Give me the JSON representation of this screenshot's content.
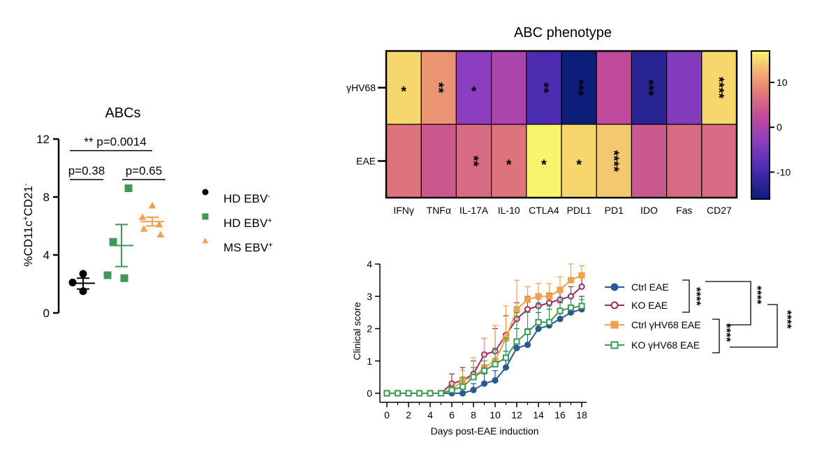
{
  "chart_data": [
    {
      "id": "abcs",
      "type": "scatter",
      "title": "ABCs",
      "ylabel": "%CD11c+CD21-",
      "ylabel_parts": [
        "%CD11c",
        "+",
        "CD21",
        "-"
      ],
      "ylim": [
        0,
        12
      ],
      "yticks": [
        0,
        4,
        8,
        12
      ],
      "ytick_labels": [
        "0",
        "4",
        "8",
        "12"
      ],
      "groups": [
        {
          "name": "HD EBV-",
          "base": "HD EBV",
          "sup": "-",
          "color": "#000000",
          "marker": "circle",
          "values": [
            2.7,
            2.1,
            1.5
          ],
          "mean": 2.05,
          "sem_low": 1.65,
          "sem_high": 2.4
        },
        {
          "name": "HD EBV+",
          "base": "HD EBV",
          "sup": "+",
          "color": "#3e9a57",
          "marker": "square",
          "values": [
            8.6,
            4.9,
            2.6,
            2.4
          ],
          "mean": 4.65,
          "sem_low": 3.2,
          "sem_high": 6.1
        },
        {
          "name": "MS EBV+",
          "base": "MS EBV",
          "sup": "+",
          "color": "#f0a24a",
          "marker": "triangle",
          "values": [
            7.4,
            6.6,
            6.1,
            5.8,
            5.4
          ],
          "mean": 6.3,
          "sem_low": 6.0,
          "sem_high": 6.6
        }
      ],
      "comparisons": [
        {
          "label": "p=0.38",
          "from": 0,
          "to": 1,
          "y": 9.2
        },
        {
          "label": "p=0.65",
          "from": 1,
          "to": 2,
          "y": 9.2
        },
        {
          "label": "** p=0.0014",
          "from": 0,
          "to": 2,
          "y": 11.2
        }
      ]
    },
    {
      "id": "abc-phenotype",
      "type": "heatmap",
      "title": "ABC phenotype",
      "rows": [
        "γHV68",
        "EAE"
      ],
      "columns": [
        "IFNγ",
        "TNFα",
        "IL-17A",
        "IL-10",
        "CTLA4",
        "PDL1",
        "PD1",
        "IDO",
        "Fas",
        "CD27"
      ],
      "values": [
        [
          15,
          10,
          -3,
          0,
          -9,
          -16,
          2,
          -13,
          -4,
          15
        ],
        [
          7,
          4,
          6,
          7,
          17,
          15,
          14,
          4,
          6,
          6
        ]
      ],
      "significance": [
        [
          "*",
          "**",
          "*",
          "",
          "**",
          "***",
          "",
          "***",
          "",
          "****"
        ],
        [
          "",
          "",
          "**",
          "*",
          "*",
          "*",
          "****",
          "",
          "",
          ""
        ]
      ],
      "vertical_marks": [
        [
          false,
          true,
          false,
          false,
          true,
          true,
          false,
          true,
          false,
          true
        ],
        [
          false,
          false,
          true,
          false,
          false,
          false,
          true,
          false,
          false,
          false
        ]
      ],
      "colorbar": {
        "min": -16,
        "max": 17,
        "ticks": [
          10,
          0,
          -10
        ],
        "tick_labels": [
          "10",
          "0",
          "-10"
        ]
      }
    },
    {
      "id": "clinical-score",
      "type": "line",
      "xlabel": "Days post-EAE induction",
      "ylabel": "Clinical score",
      "xlim": [
        0,
        18
      ],
      "ylim": [
        0,
        4
      ],
      "xticks": [
        0,
        2,
        4,
        6,
        8,
        10,
        12,
        14,
        16,
        18
      ],
      "xtick_labels": [
        "0",
        "2",
        "4",
        "6",
        "8",
        "10",
        "12",
        "14",
        "16",
        "18"
      ],
      "yticks": [
        0,
        1,
        2,
        3,
        4
      ],
      "ytick_labels": [
        "0",
        "1",
        "2",
        "3",
        "4"
      ],
      "x": [
        0,
        1,
        2,
        3,
        4,
        5,
        6,
        7,
        8,
        9,
        10,
        11,
        12,
        13,
        14,
        15,
        16,
        17,
        18
      ],
      "series": [
        {
          "name": "Ctrl EAE",
          "color": "#2a5a93",
          "marker": "filled-circle",
          "values": [
            0,
            0,
            0,
            0,
            0,
            0,
            0,
            0,
            0.1,
            0.3,
            0.4,
            0.8,
            1.4,
            1.5,
            2.0,
            2.1,
            2.3,
            2.5,
            2.6
          ],
          "error": [
            0,
            0,
            0,
            0,
            0,
            0,
            0,
            0,
            0.2,
            0.3,
            0.3,
            0.5,
            0.6,
            0.5,
            0.5,
            0.5,
            0.5,
            0.5,
            0.4
          ]
        },
        {
          "name": "KO EAE",
          "color": "#9b2a5e",
          "marker": "open-circle",
          "values": [
            0,
            0,
            0,
            0,
            0,
            0,
            0.3,
            0.4,
            0.6,
            1.2,
            1.3,
            1.8,
            2.3,
            2.6,
            2.7,
            2.8,
            2.9,
            3.0,
            3.3
          ],
          "error": [
            0,
            0,
            0,
            0,
            0,
            0,
            0.3,
            0.4,
            0.4,
            0.5,
            0.7,
            0.6,
            0.5,
            0.4,
            0.3,
            0.3,
            0.3,
            0.3,
            0.3
          ]
        },
        {
          "name": "Ctrl γHV68 EAE",
          "color": "#f0a24a",
          "marker": "filled-square",
          "values": [
            0,
            0,
            0,
            0,
            0,
            0,
            0.1,
            0.4,
            0.5,
            0.8,
            1.0,
            1.7,
            2.6,
            2.9,
            3.0,
            3.0,
            3.2,
            3.5,
            3.65
          ],
          "error": [
            0,
            0,
            0,
            0,
            0,
            0,
            0.2,
            0.3,
            0.6,
            0.9,
            1.1,
            1.0,
            0.9,
            0.4,
            0.4,
            0.4,
            0.4,
            0.5,
            0.3
          ]
        },
        {
          "name": "KO γHV68 EAE",
          "color": "#3e9a57",
          "marker": "open-square",
          "values": [
            0,
            0,
            0,
            0,
            0,
            0,
            0.1,
            0.2,
            0.5,
            0.7,
            0.9,
            1.1,
            1.6,
            1.9,
            2.2,
            2.2,
            2.55,
            2.65,
            2.7
          ],
          "error": [
            0,
            0,
            0,
            0,
            0,
            0,
            0.1,
            0.3,
            0.3,
            0.3,
            0.5,
            0.6,
            0.9,
            0.6,
            0.6,
            0.5,
            0.4,
            0.3,
            0.2
          ]
        }
      ],
      "significance": [
        {
          "label": "****",
          "pair": [
            "Ctrl EAE",
            "KO EAE"
          ]
        },
        {
          "label": "****",
          "pair": [
            "Ctrl γHV68 EAE",
            "KO γHV68 EAE"
          ]
        },
        {
          "label": "****",
          "pair": [
            "Ctrl EAE & KO EAE",
            "Ctrl γHV68 EAE"
          ]
        },
        {
          "label": "****",
          "pair": [
            "KO EAE",
            "KO γHV68 EAE"
          ]
        }
      ]
    }
  ]
}
